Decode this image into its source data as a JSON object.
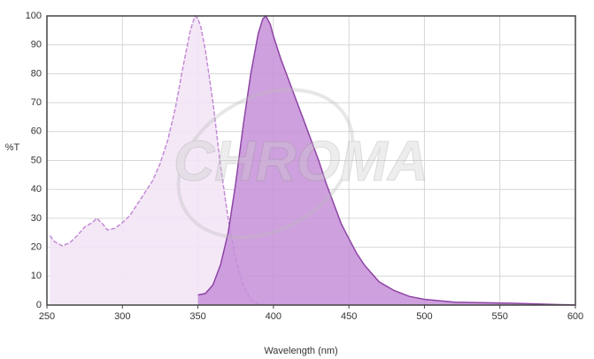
{
  "chart_data": {
    "type": "area",
    "xlabel": "Wavelength (nm)",
    "ylabel": "%T",
    "watermark": "CHROMA",
    "xlim": [
      250,
      600
    ],
    "xticks": [
      250,
      300,
      350,
      400,
      450,
      500,
      550,
      600
    ],
    "ylim": [
      0,
      100
    ],
    "yticks": [
      0,
      10,
      20,
      30,
      40,
      50,
      60,
      70,
      80,
      90,
      100
    ],
    "grid": true,
    "series": [
      {
        "color": "#c48bd6",
        "fill": "#f3e5f6",
        "dashed": true,
        "x": [
          252,
          255,
          260,
          265,
          270,
          275,
          280,
          283,
          287,
          290,
          295,
          300,
          305,
          310,
          315,
          320,
          325,
          330,
          335,
          340,
          345,
          348,
          350,
          352,
          355,
          360,
          365,
          370,
          375,
          380,
          385,
          390,
          395
        ],
        "values": [
          24,
          22,
          20.5,
          21.5,
          24,
          27,
          28.5,
          30,
          28,
          26,
          26.5,
          28.5,
          31,
          35,
          39,
          43,
          49,
          57,
          68,
          82,
          95,
          100,
          99,
          96,
          88,
          70,
          48,
          30,
          16,
          7,
          2,
          0.5,
          0
        ]
      },
      {
        "color": "#8e44a5",
        "fill": "#c68fd8",
        "dashed": false,
        "x": [
          350,
          355,
          360,
          365,
          370,
          375,
          380,
          385,
          390,
          393,
          395,
          398,
          400,
          405,
          410,
          415,
          420,
          425,
          430,
          435,
          440,
          445,
          450,
          455,
          460,
          465,
          470,
          475,
          480,
          490,
          500,
          510,
          520,
          540,
          560,
          580,
          600
        ],
        "values": [
          3.5,
          4,
          7,
          14,
          25,
          42,
          62,
          80,
          94,
          99,
          100,
          97,
          93,
          85,
          78,
          71,
          64,
          57,
          50,
          42,
          35,
          28,
          23,
          18,
          14,
          11,
          8,
          6.5,
          5,
          3,
          2,
          1.5,
          1,
          0.8,
          0.6,
          0.3,
          0
        ]
      }
    ]
  }
}
